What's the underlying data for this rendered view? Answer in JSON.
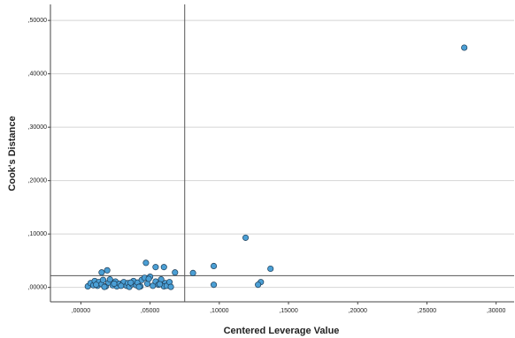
{
  "chart_data": {
    "type": "scatter",
    "x_label": "Centered Leverage Value",
    "y_label": "Cook's Distance",
    "xlim": [
      -0.022,
      0.313
    ],
    "ylim": [
      -0.027,
      0.53
    ],
    "xticks": [
      {
        "value": 0,
        "label": ",00000"
      },
      {
        "value": 0.05,
        "label": ",05000"
      },
      {
        "value": 0.1,
        "label": ",10000"
      },
      {
        "value": 0.15,
        "label": ",15000"
      },
      {
        "value": 0.2,
        "label": ",20000"
      },
      {
        "value": 0.25,
        "label": ",25000"
      },
      {
        "value": 0.3,
        "label": ",30000"
      }
    ],
    "yticks": [
      {
        "value": 0,
        "label": ",00000"
      },
      {
        "value": 0.1,
        "label": ",10000"
      },
      {
        "value": 0.2,
        "label": ",20000"
      },
      {
        "value": 0.3,
        "label": ",30000"
      },
      {
        "value": 0.4,
        "label": ",40000"
      },
      {
        "value": 0.5,
        "label": ",50000"
      }
    ],
    "grid": true,
    "color": "#4b9fd5",
    "reference_lines": {
      "x": 0.075,
      "y": 0.022
    },
    "x": [
      0.277,
      0.119,
      0.096,
      0.137,
      0.13,
      0.128,
      0.096,
      0.081,
      0.068,
      0.047,
      0.054,
      0.06,
      0.019,
      0.015,
      0.061,
      0.005,
      0.007,
      0.009,
      0.01,
      0.012,
      0.013,
      0.015,
      0.016,
      0.018,
      0.02,
      0.021,
      0.023,
      0.025,
      0.026,
      0.028,
      0.03,
      0.031,
      0.033,
      0.034,
      0.035,
      0.037,
      0.038,
      0.04,
      0.041,
      0.043,
      0.044,
      0.046,
      0.048,
      0.05,
      0.052,
      0.054,
      0.056,
      0.058,
      0.06,
      0.062,
      0.064,
      0.065,
      0.011,
      0.017,
      0.024,
      0.029,
      0.036,
      0.042,
      0.049,
      0.057
    ],
    "y": [
      0.449,
      0.093,
      0.04,
      0.035,
      0.01,
      0.005,
      0.005,
      0.027,
      0.028,
      0.046,
      0.038,
      0.038,
      0.032,
      0.028,
      0.008,
      0.002,
      0.008,
      0.004,
      0.012,
      0.003,
      0.01,
      0.006,
      0.014,
      0.002,
      0.009,
      0.015,
      0.004,
      0.011,
      0.002,
      0.007,
      0.005,
      0.01,
      0.003,
      0.008,
      0.001,
      0.006,
      0.012,
      0.004,
      0.009,
      0.002,
      0.014,
      0.018,
      0.007,
      0.02,
      0.003,
      0.011,
      0.005,
      0.015,
      0.002,
      0.003,
      0.01,
      0.001,
      0.005,
      0.001,
      0.007,
      0.003,
      0.009,
      0.001,
      0.016,
      0.006
    ]
  }
}
